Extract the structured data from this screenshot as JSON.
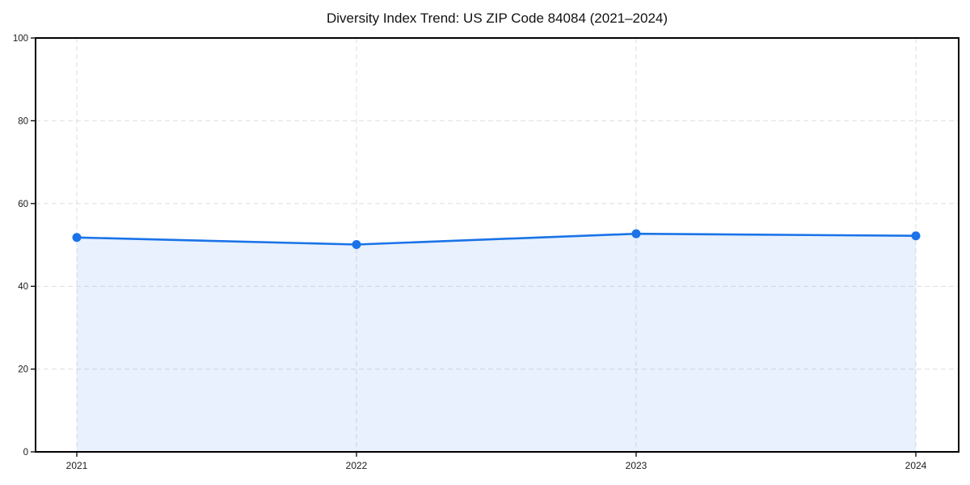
{
  "chart_data": {
    "type": "area",
    "title": "Diversity Index Trend: US ZIP Code 84084 (2021–2024)",
    "categories": [
      "2021",
      "2022",
      "2023",
      "2024"
    ],
    "series": [
      {
        "name": "Diversity Index",
        "values": [
          51.8,
          50.1,
          52.7,
          52.2
        ]
      }
    ],
    "xlabel": "",
    "ylabel": "",
    "ylim": [
      0,
      100
    ],
    "yticks": [
      0,
      20,
      40,
      60,
      80,
      100
    ],
    "grid": "dashed-both-axes",
    "legend_position": "none",
    "line_color": "#1a73e8",
    "marker_color": "#1a73e8",
    "fill_color": "rgba(26,115,232,0.10)",
    "grid_color": "#dedede",
    "border_color": "#000000",
    "tick_label_color": "#1b1b1b"
  }
}
